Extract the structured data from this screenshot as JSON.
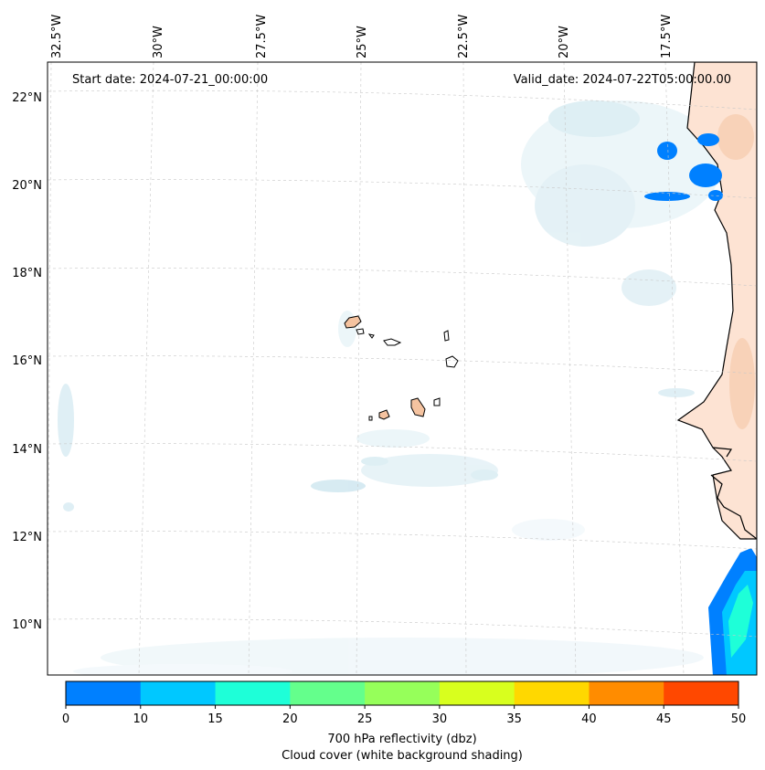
{
  "map": {
    "start_date": "Start date: 2024-07-21_00:00:00",
    "valid_date": "Valid_date: 2024-07-22T05:00:00.00",
    "lon_labels": [
      "32.5°W",
      "30°W",
      "27.5°W",
      "25°W",
      "22.5°W",
      "20°W",
      "17.5°W"
    ],
    "lat_labels": [
      "22°N",
      "20°N",
      "18°N",
      "16°N",
      "14°N",
      "12°N",
      "10°N"
    ],
    "colors": {
      "land": "#fde3d3",
      "land_dark": "#f5c3a0",
      "cloud": "#d6ecf3",
      "coast": "#000000",
      "grid": "#c8c8c8"
    }
  },
  "colorbar": {
    "ticks": [
      "0",
      "10",
      "15",
      "20",
      "25",
      "30",
      "35",
      "40",
      "45",
      "50"
    ],
    "colors": [
      "#0080ff",
      "#00c8ff",
      "#1effd8",
      "#64ff8c",
      "#96ff5a",
      "#d8ff1e",
      "#ffd800",
      "#ff8c00",
      "#ff4800"
    ],
    "label_line1": "700 hPa reflectivity (dbz)",
    "label_line2": "Cloud cover (white background shading)"
  }
}
